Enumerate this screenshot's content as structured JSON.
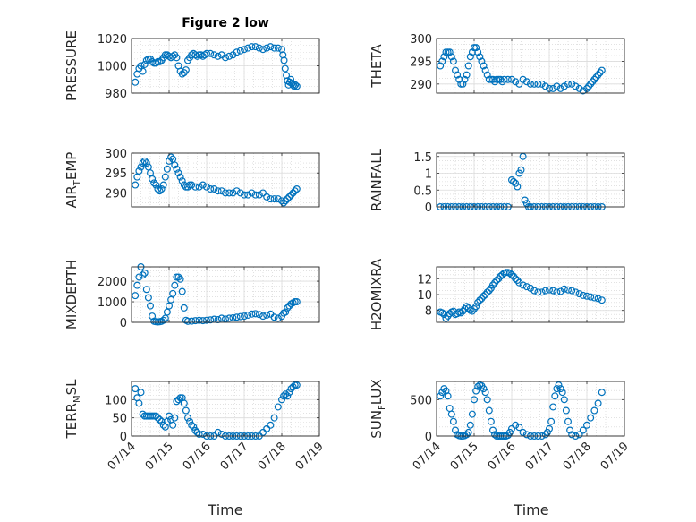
{
  "figure": {
    "title": "Figure 2 low",
    "xlabel": "Time",
    "x_ticks": [
      "07/14",
      "07/15",
      "07/16",
      "07/17",
      "07/18",
      "07/19"
    ],
    "marker_color": "#0072BD"
  },
  "chart_data": [
    {
      "type": "scatter",
      "ylabel": "PRESSURE",
      "xlim": [
        0,
        5
      ],
      "ylim": [
        980,
        1020
      ],
      "y_ticks": [
        980,
        1000,
        1020
      ],
      "x_ticks": [
        "07/14",
        "07/15",
        "07/16",
        "07/17",
        "07/18",
        "07/19"
      ],
      "grid": true,
      "x": [
        0.1,
        0.15,
        0.2,
        0.25,
        0.3,
        0.35,
        0.4,
        0.45,
        0.5,
        0.55,
        0.6,
        0.65,
        0.7,
        0.75,
        0.8,
        0.85,
        0.9,
        0.95,
        1.0,
        1.05,
        1.1,
        1.15,
        1.2,
        1.25,
        1.3,
        1.35,
        1.4,
        1.45,
        1.5,
        1.55,
        1.6,
        1.65,
        1.7,
        1.75,
        1.8,
        1.85,
        1.9,
        1.95,
        2.0,
        2.1,
        2.2,
        2.3,
        2.4,
        2.5,
        2.6,
        2.7,
        2.8,
        2.9,
        3.0,
        3.1,
        3.2,
        3.3,
        3.4,
        3.5,
        3.6,
        3.7,
        3.8,
        3.9,
        4.0,
        4.03,
        4.06,
        4.09,
        4.12,
        4.15,
        4.18,
        4.21,
        4.24,
        4.27,
        4.3,
        4.33,
        4.36,
        4.4
      ],
      "y": [
        988,
        994,
        998,
        1000,
        996,
        1001,
        1004,
        1005,
        1005,
        1003,
        1002,
        1002,
        1003,
        1003,
        1004,
        1006,
        1008,
        1008,
        1007,
        1006,
        1007,
        1008,
        1006,
        1000,
        996,
        994,
        995,
        997,
        1004,
        1006,
        1008,
        1009,
        1008,
        1007,
        1008,
        1008,
        1007,
        1008,
        1009,
        1009,
        1008,
        1007,
        1008,
        1006,
        1007,
        1008,
        1010,
        1011,
        1012,
        1013,
        1014,
        1014,
        1013,
        1012,
        1013,
        1014,
        1013,
        1013,
        1012,
        1008,
        1004,
        998,
        993,
        989,
        986,
        988,
        990,
        987,
        986,
        985,
        986,
        985
      ]
    },
    {
      "type": "scatter",
      "ylabel": "THETA",
      "xlim": [
        0,
        5
      ],
      "ylim": [
        288,
        300
      ],
      "y_ticks": [
        290,
        295,
        300
      ],
      "x_ticks": [
        "07/14",
        "07/15",
        "07/16",
        "07/17",
        "07/18",
        "07/19"
      ],
      "grid": true,
      "x": [
        0.1,
        0.15,
        0.2,
        0.25,
        0.3,
        0.35,
        0.4,
        0.45,
        0.5,
        0.55,
        0.6,
        0.65,
        0.7,
        0.75,
        0.8,
        0.85,
        0.9,
        0.95,
        1.0,
        1.05,
        1.1,
        1.15,
        1.2,
        1.25,
        1.3,
        1.35,
        1.4,
        1.45,
        1.5,
        1.55,
        1.6,
        1.65,
        1.7,
        1.75,
        1.8,
        1.9,
        2.0,
        2.1,
        2.2,
        2.3,
        2.4,
        2.5,
        2.6,
        2.7,
        2.8,
        2.9,
        3.0,
        3.1,
        3.2,
        3.3,
        3.4,
        3.5,
        3.6,
        3.7,
        3.8,
        3.9,
        4.0,
        4.05,
        4.1,
        4.15,
        4.2,
        4.25,
        4.3,
        4.35,
        4.4
      ],
      "y": [
        294,
        295,
        296,
        297,
        297,
        297,
        296,
        295,
        293,
        292,
        291,
        290,
        290,
        291,
        292,
        294,
        296,
        297,
        298,
        298,
        297,
        296,
        295,
        294,
        293,
        292,
        291,
        291,
        291,
        290.5,
        291,
        291,
        291,
        290.5,
        291,
        291,
        291,
        290.5,
        290,
        291,
        290.5,
        290,
        290,
        290,
        290,
        289.5,
        289,
        289,
        289.5,
        289,
        289.5,
        290,
        290,
        289.5,
        289,
        288.5,
        289,
        289.5,
        290,
        290.5,
        291,
        291.5,
        292,
        292.5,
        293
      ]
    },
    {
      "type": "scatter",
      "ylabel": "AIR",
      "ylabel_sub": "T",
      "ylabel_suffix": "EMP",
      "xlim": [
        0,
        5
      ],
      "ylim": [
        286.5,
        300
      ],
      "y_ticks": [
        290,
        295,
        300
      ],
      "x_ticks": [
        "07/14",
        "07/15",
        "07/16",
        "07/17",
        "07/18",
        "07/19"
      ],
      "grid": true,
      "x": [
        0.1,
        0.15,
        0.2,
        0.25,
        0.3,
        0.35,
        0.4,
        0.45,
        0.5,
        0.55,
        0.6,
        0.65,
        0.7,
        0.75,
        0.8,
        0.85,
        0.9,
        0.95,
        1.0,
        1.05,
        1.1,
        1.15,
        1.2,
        1.25,
        1.3,
        1.35,
        1.4,
        1.45,
        1.5,
        1.55,
        1.6,
        1.7,
        1.8,
        1.9,
        2.0,
        2.1,
        2.2,
        2.3,
        2.4,
        2.5,
        2.6,
        2.7,
        2.8,
        2.9,
        3.0,
        3.1,
        3.2,
        3.3,
        3.4,
        3.5,
        3.6,
        3.7,
        3.8,
        3.9,
        4.0,
        4.05,
        4.1,
        4.15,
        4.2,
        4.25,
        4.3,
        4.35,
        4.4
      ],
      "y": [
        292,
        294,
        295.5,
        296.5,
        297.5,
        298,
        297.5,
        296.5,
        295,
        293.5,
        292.5,
        292,
        291,
        290.5,
        291,
        292,
        294,
        296,
        298,
        299,
        298.5,
        297,
        296,
        295,
        294,
        293,
        292,
        291.5,
        291.5,
        292,
        292,
        291.5,
        291.5,
        292,
        291.5,
        291,
        291,
        290.5,
        290.5,
        290,
        290,
        290,
        290.5,
        290,
        289.5,
        289.5,
        290,
        289.5,
        289.5,
        290,
        289,
        288.5,
        288.5,
        288.5,
        288,
        287.5,
        288,
        288.5,
        289,
        289.5,
        290,
        290.5,
        291
      ]
    },
    {
      "type": "scatter",
      "ylabel": "RAINFALL",
      "xlim": [
        0,
        5
      ],
      "ylim": [
        0,
        1.6
      ],
      "y_ticks": [
        0,
        0.5,
        1,
        1.5
      ],
      "y_tick_labels": [
        "0",
        "0.5",
        "1",
        "1.5"
      ],
      "x_ticks": [
        "07/14",
        "07/15",
        "07/16",
        "07/17",
        "07/18",
        "07/19"
      ],
      "grid": true,
      "x": [
        0.1,
        0.2,
        0.3,
        0.4,
        0.5,
        0.6,
        0.7,
        0.8,
        0.9,
        1.0,
        1.1,
        1.2,
        1.3,
        1.4,
        1.5,
        1.6,
        1.7,
        1.8,
        1.9,
        2.0,
        2.05,
        2.1,
        2.15,
        2.2,
        2.25,
        2.3,
        2.35,
        2.4,
        2.45,
        2.5,
        2.6,
        2.7,
        2.8,
        2.9,
        3.0,
        3.1,
        3.2,
        3.3,
        3.4,
        3.5,
        3.6,
        3.7,
        3.8,
        3.9,
        4.0,
        4.1,
        4.2,
        4.3,
        4.4
      ],
      "y": [
        0,
        0,
        0,
        0,
        0,
        0,
        0,
        0,
        0,
        0,
        0,
        0,
        0,
        0,
        0,
        0,
        0,
        0,
        0,
        0.8,
        0.75,
        0.7,
        0.6,
        1.0,
        1.1,
        1.5,
        0.2,
        0.1,
        0,
        0,
        0,
        0,
        0,
        0,
        0,
        0,
        0,
        0,
        0,
        0,
        0,
        0,
        0,
        0,
        0,
        0,
        0,
        0,
        0
      ]
    },
    {
      "type": "scatter",
      "ylabel": "MIXDEPTH",
      "xlim": [
        0,
        5
      ],
      "ylim": [
        0,
        2700
      ],
      "y_ticks": [
        0,
        1000,
        2000
      ],
      "x_ticks": [
        "07/14",
        "07/15",
        "07/16",
        "07/17",
        "07/18",
        "07/19"
      ],
      "grid": true,
      "x": [
        0.1,
        0.15,
        0.2,
        0.25,
        0.3,
        0.35,
        0.4,
        0.45,
        0.5,
        0.55,
        0.6,
        0.65,
        0.7,
        0.75,
        0.8,
        0.85,
        0.9,
        0.95,
        1.0,
        1.05,
        1.1,
        1.15,
        1.2,
        1.25,
        1.3,
        1.35,
        1.4,
        1.45,
        1.5,
        1.6,
        1.7,
        1.8,
        1.9,
        2.0,
        2.1,
        2.2,
        2.3,
        2.4,
        2.5,
        2.6,
        2.7,
        2.8,
        2.9,
        3.0,
        3.1,
        3.2,
        3.3,
        3.4,
        3.5,
        3.6,
        3.7,
        3.8,
        3.9,
        4.0,
        4.05,
        4.1,
        4.15,
        4.2,
        4.25,
        4.3,
        4.35,
        4.4
      ],
      "y": [
        1300,
        1800,
        2200,
        2700,
        2300,
        2400,
        1600,
        1200,
        800,
        300,
        50,
        30,
        20,
        30,
        50,
        100,
        200,
        500,
        800,
        1100,
        1400,
        1800,
        2200,
        2200,
        2100,
        1500,
        700,
        100,
        50,
        60,
        80,
        100,
        80,
        100,
        120,
        150,
        130,
        200,
        160,
        200,
        220,
        250,
        280,
        300,
        350,
        400,
        420,
        380,
        300,
        350,
        400,
        250,
        200,
        300,
        450,
        500,
        700,
        800,
        900,
        950,
        1000,
        1000
      ]
    },
    {
      "type": "scatter",
      "ylabel": "H2OMIXRA",
      "xlim": [
        0,
        5
      ],
      "ylim": [
        6.5,
        13.5
      ],
      "y_ticks": [
        8,
        10,
        12
      ],
      "x_ticks": [
        "07/14",
        "07/15",
        "07/16",
        "07/17",
        "07/18",
        "07/19"
      ],
      "grid": true,
      "x": [
        0.1,
        0.15,
        0.2,
        0.25,
        0.3,
        0.35,
        0.4,
        0.45,
        0.5,
        0.55,
        0.6,
        0.65,
        0.7,
        0.75,
        0.8,
        0.85,
        0.9,
        0.95,
        1.0,
        1.05,
        1.1,
        1.15,
        1.2,
        1.25,
        1.3,
        1.35,
        1.4,
        1.45,
        1.5,
        1.55,
        1.6,
        1.65,
        1.7,
        1.75,
        1.8,
        1.85,
        1.9,
        1.95,
        2.0,
        2.05,
        2.1,
        2.15,
        2.2,
        2.3,
        2.4,
        2.5,
        2.6,
        2.7,
        2.8,
        2.9,
        3.0,
        3.1,
        3.2,
        3.3,
        3.4,
        3.5,
        3.6,
        3.7,
        3.8,
        3.9,
        4.0,
        4.1,
        4.2,
        4.3,
        4.4
      ],
      "y": [
        7.8,
        7.7,
        7.5,
        7.0,
        7.3,
        7.6,
        7.8,
        7.9,
        7.5,
        7.6,
        7.8,
        7.7,
        7.9,
        8.2,
        8.5,
        8.3,
        8.0,
        7.9,
        8.2,
        8.5,
        9.0,
        9.3,
        9.5,
        9.8,
        10.0,
        10.3,
        10.5,
        10.8,
        11.2,
        11.5,
        11.8,
        12.0,
        12.3,
        12.5,
        12.7,
        12.8,
        12.8,
        12.7,
        12.5,
        12.3,
        12.0,
        11.8,
        11.5,
        11.2,
        11.0,
        10.8,
        10.5,
        10.3,
        10.3,
        10.5,
        10.6,
        10.5,
        10.3,
        10.4,
        10.7,
        10.6,
        10.5,
        10.3,
        10.1,
        9.9,
        9.8,
        9.7,
        9.6,
        9.5,
        9.3
      ]
    },
    {
      "type": "scatter",
      "ylabel": "TERR",
      "ylabel_sub": "M",
      "ylabel_suffix": "SL",
      "xlim": [
        0,
        5
      ],
      "ylim": [
        0,
        150
      ],
      "y_ticks": [
        0,
        50,
        100
      ],
      "x_ticks": [
        "07/14",
        "07/15",
        "07/16",
        "07/17",
        "07/18",
        "07/19"
      ],
      "grid": true,
      "x": [
        0.1,
        0.15,
        0.2,
        0.25,
        0.3,
        0.35,
        0.4,
        0.45,
        0.5,
        0.55,
        0.6,
        0.65,
        0.7,
        0.75,
        0.8,
        0.85,
        0.9,
        0.95,
        1.0,
        1.05,
        1.1,
        1.15,
        1.2,
        1.25,
        1.3,
        1.35,
        1.4,
        1.45,
        1.5,
        1.55,
        1.6,
        1.65,
        1.7,
        1.75,
        1.8,
        1.9,
        2.0,
        2.1,
        2.2,
        2.3,
        2.4,
        2.5,
        2.6,
        2.7,
        2.8,
        2.9,
        3.0,
        3.1,
        3.2,
        3.3,
        3.4,
        3.5,
        3.6,
        3.7,
        3.8,
        3.9,
        4.0,
        4.05,
        4.1,
        4.15,
        4.2,
        4.25,
        4.3,
        4.35,
        4.4
      ],
      "y": [
        130,
        105,
        90,
        120,
        60,
        55,
        55,
        55,
        55,
        55,
        55,
        55,
        50,
        45,
        40,
        30,
        25,
        40,
        55,
        45,
        30,
        50,
        95,
        100,
        105,
        105,
        90,
        70,
        50,
        40,
        30,
        25,
        15,
        10,
        5,
        5,
        0,
        0,
        0,
        10,
        5,
        0,
        0,
        0,
        0,
        0,
        0,
        0,
        0,
        0,
        0,
        10,
        20,
        30,
        50,
        80,
        100,
        110,
        115,
        110,
        120,
        130,
        135,
        140,
        140
      ]
    },
    {
      "type": "scatter",
      "ylabel": "SUN",
      "ylabel_sub": "F",
      "ylabel_suffix": "LUX",
      "xlim": [
        0,
        5
      ],
      "ylim": [
        0,
        750
      ],
      "y_ticks": [
        0,
        500
      ],
      "x_ticks": [
        "07/14",
        "07/15",
        "07/16",
        "07/17",
        "07/18",
        "07/19"
      ],
      "grid": true,
      "x": [
        0.1,
        0.15,
        0.2,
        0.25,
        0.3,
        0.35,
        0.4,
        0.45,
        0.5,
        0.55,
        0.6,
        0.65,
        0.7,
        0.75,
        0.8,
        0.85,
        0.9,
        0.95,
        1.0,
        1.05,
        1.1,
        1.15,
        1.2,
        1.25,
        1.3,
        1.35,
        1.4,
        1.45,
        1.5,
        1.55,
        1.6,
        1.65,
        1.7,
        1.75,
        1.8,
        1.85,
        1.9,
        1.95,
        2.0,
        2.1,
        2.2,
        2.3,
        2.4,
        2.5,
        2.6,
        2.7,
        2.8,
        2.9,
        2.95,
        3.0,
        3.05,
        3.1,
        3.15,
        3.2,
        3.25,
        3.3,
        3.35,
        3.4,
        3.45,
        3.5,
        3.55,
        3.6,
        3.7,
        3.8,
        3.9,
        4.0,
        4.1,
        4.2,
        4.3,
        4.4
      ],
      "y": [
        550,
        600,
        650,
        620,
        550,
        380,
        300,
        200,
        80,
        20,
        5,
        0,
        0,
        5,
        20,
        50,
        150,
        300,
        500,
        620,
        680,
        700,
        690,
        650,
        600,
        500,
        350,
        200,
        80,
        20,
        0,
        0,
        0,
        0,
        0,
        0,
        10,
        50,
        100,
        150,
        120,
        50,
        20,
        0,
        0,
        0,
        0,
        20,
        50,
        100,
        200,
        400,
        550,
        650,
        700,
        650,
        600,
        500,
        350,
        200,
        80,
        20,
        0,
        20,
        80,
        150,
        250,
        350,
        450,
        600
      ]
    }
  ]
}
